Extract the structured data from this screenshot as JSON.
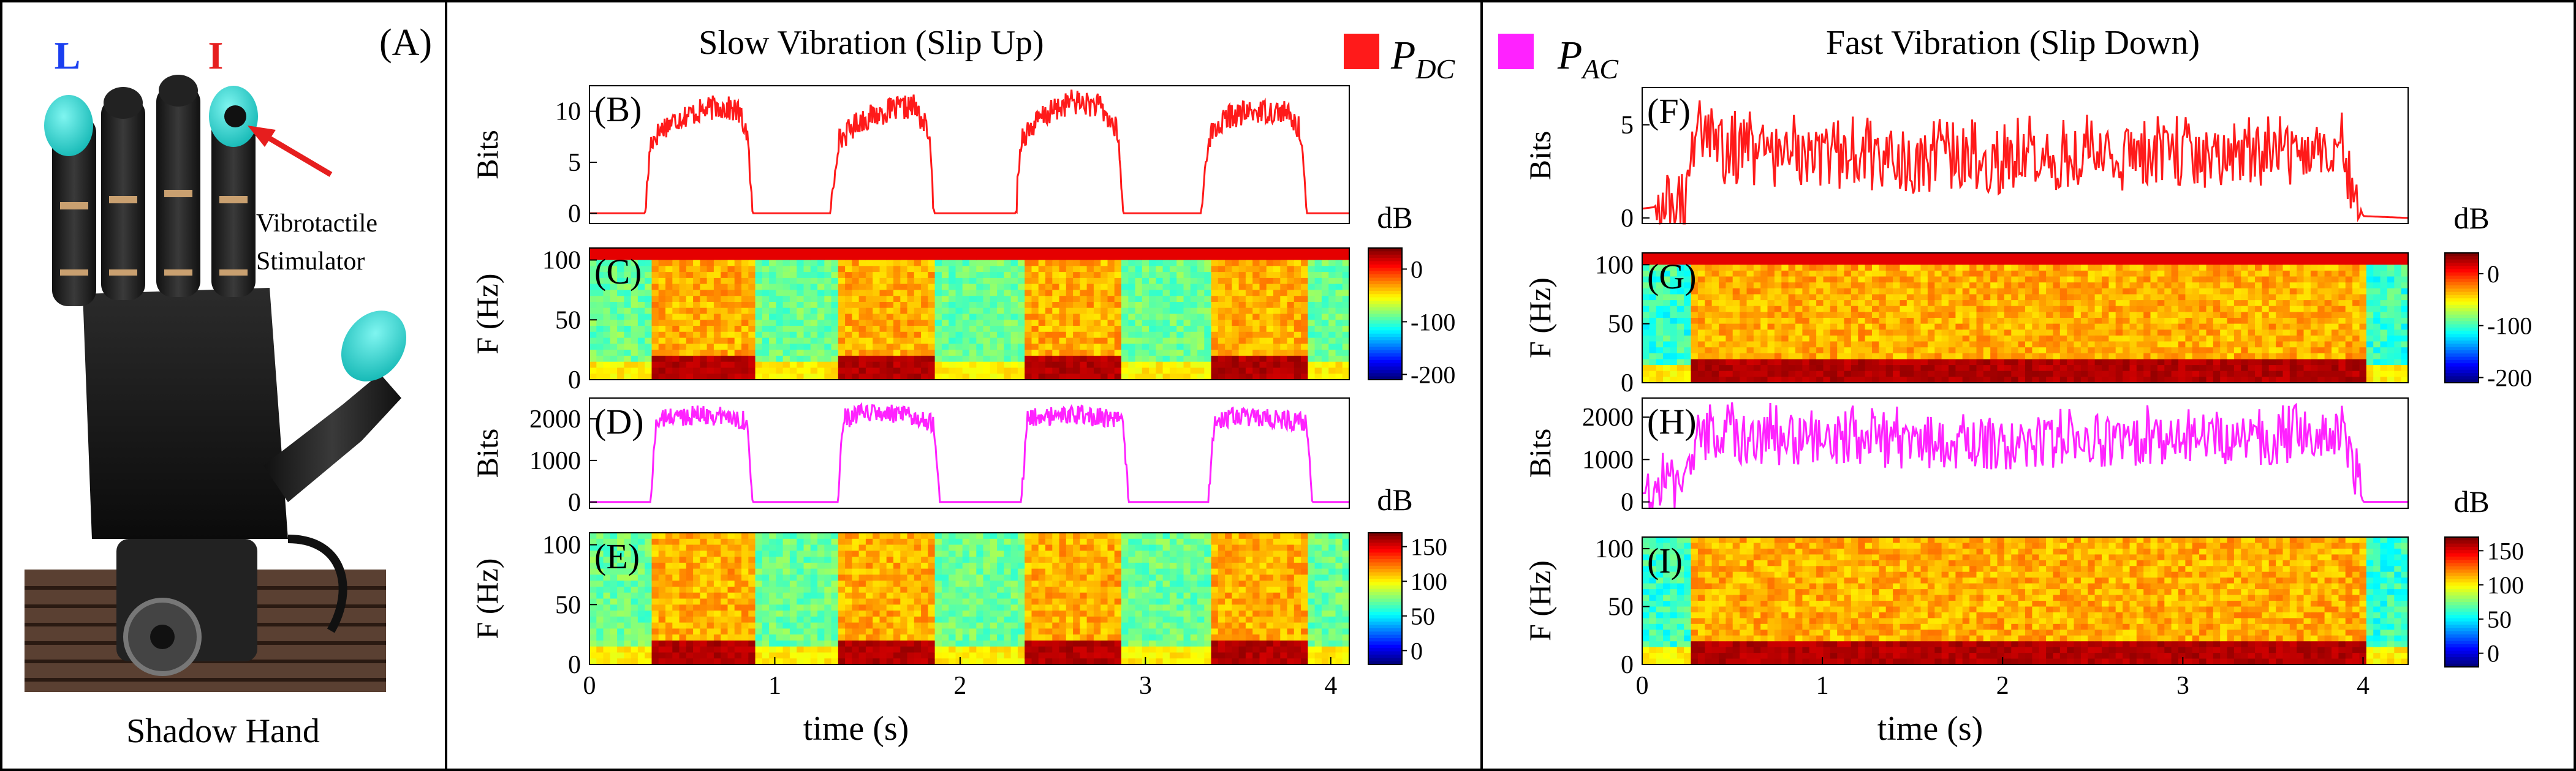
{
  "figure": {
    "panel_a": {
      "letter": "(A)",
      "caption": "Shadow Hand",
      "finger_l": "L",
      "finger_i": "I",
      "annotation": [
        "Vibrotactile",
        "Stimulator"
      ]
    },
    "left_title": "Slow Vibration  (Slip Up)",
    "right_title": "Fast Vibration  (Slip Down)",
    "legend": [
      {
        "label": "P",
        "sub": "DC",
        "color": "#ff1a1a"
      },
      {
        "label": "P",
        "sub": "AC",
        "color": "#ff22ff"
      }
    ],
    "shared_xlabel": "time  (s)",
    "colorbar_unit": "dB"
  },
  "chart_data": [
    {
      "id": "B",
      "letter": "(B)",
      "type": "line",
      "ylabel": "Bits",
      "color": "#ff1a1a",
      "xlim": [
        0,
        4.1
      ],
      "ylim": [
        -1,
        12.5
      ],
      "yticks": [
        0,
        5,
        10
      ],
      "series_name": "P_DC",
      "pattern": "slow",
      "x": [
        0,
        0.3,
        0.33,
        0.4,
        0.5,
        0.6,
        0.7,
        0.8,
        0.85,
        0.88,
        1.3,
        1.34,
        1.45,
        1.6,
        1.75,
        1.83,
        1.86,
        2.3,
        2.33,
        2.45,
        2.6,
        2.75,
        2.85,
        2.88,
        3.3,
        3.34,
        3.45,
        3.6,
        3.75,
        3.84,
        3.87,
        4.1
      ],
      "y": [
        0,
        0,
        7,
        8.5,
        9.5,
        10,
        10.5,
        10,
        8,
        0,
        0,
        7,
        9,
        10,
        10.5,
        8,
        0,
        0,
        7.5,
        9.5,
        11,
        10.5,
        8,
        0,
        0,
        7.5,
        9.5,
        10,
        10,
        8,
        0,
        0
      ]
    },
    {
      "id": "C",
      "letter": "(C)",
      "type": "heatmap",
      "ylabel": "F (Hz)",
      "xlim": [
        0,
        4.1
      ],
      "ylim": [
        0,
        110
      ],
      "yticks": [
        0,
        50,
        100
      ],
      "pattern": "slow",
      "on_intervals": [
        [
          0.33,
          0.88
        ],
        [
          1.34,
          1.86
        ],
        [
          2.33,
          2.88
        ],
        [
          3.34,
          3.87
        ]
      ],
      "colorbar_ticks": [
        0,
        -100,
        -200
      ],
      "colorbar_range": [
        -210,
        40
      ]
    },
    {
      "id": "D",
      "letter": "(D)",
      "type": "line",
      "ylabel": "Bits",
      "color": "#ff22ff",
      "xlim": [
        0,
        4.1
      ],
      "ylim": [
        -150,
        2500
      ],
      "yticks": [
        0,
        1000,
        2000
      ],
      "series_name": "P_AC",
      "pattern": "slow",
      "x": [
        0,
        0.33,
        0.36,
        0.45,
        0.6,
        0.75,
        0.85,
        0.88,
        1.34,
        1.37,
        1.5,
        1.65,
        1.8,
        1.86,
        1.89,
        2.33,
        2.36,
        2.5,
        2.65,
        2.8,
        2.88,
        2.91,
        3.34,
        3.37,
        3.5,
        3.65,
        3.8,
        3.87,
        3.9,
        4.1
      ],
      "y": [
        0,
        0,
        1950,
        2050,
        2100,
        2050,
        1950,
        0,
        0,
        2000,
        2150,
        2100,
        2000,
        1900,
        0,
        0,
        2000,
        2050,
        2100,
        2000,
        1900,
        0,
        0,
        1950,
        2050,
        2000,
        1950,
        1900,
        0,
        0
      ]
    },
    {
      "id": "E",
      "letter": "(E)",
      "type": "heatmap",
      "ylabel": "F (Hz)",
      "xlim": [
        0,
        4.1
      ],
      "ylim": [
        0,
        110
      ],
      "yticks": [
        0,
        50,
        100
      ],
      "xticks": [
        0,
        1,
        2,
        3,
        4
      ],
      "pattern": "slow",
      "on_intervals": [
        [
          0.33,
          0.88
        ],
        [
          1.34,
          1.86
        ],
        [
          2.33,
          2.88
        ],
        [
          3.34,
          3.87
        ]
      ],
      "colorbar_ticks": [
        150,
        100,
        50,
        0
      ],
      "colorbar_range": [
        -20,
        170
      ]
    },
    {
      "id": "F",
      "letter": "(F)",
      "type": "line",
      "ylabel": "Bits",
      "color": "#ff1a1a",
      "xlim": [
        0,
        4.25
      ],
      "ylim": [
        -0.3,
        7
      ],
      "yticks": [
        0,
        5
      ],
      "series_name": "P_DC",
      "pattern": "fast",
      "x": [
        0,
        0.25,
        0.3,
        0.4,
        0.6,
        0.8,
        1.0,
        1.5,
        2.0,
        2.5,
        3.0,
        3.5,
        3.8,
        3.9,
        4.0,
        4.25
      ],
      "y": [
        0.5,
        0.8,
        5.5,
        3.5,
        3.2,
        3.3,
        3.0,
        2.8,
        2.9,
        3.0,
        3.1,
        3.3,
        3.5,
        3.0,
        0.1,
        0
      ]
    },
    {
      "id": "G",
      "letter": "(G)",
      "type": "heatmap",
      "ylabel": "F (Hz)",
      "xlim": [
        0,
        4.25
      ],
      "ylim": [
        0,
        110
      ],
      "yticks": [
        0,
        50,
        100
      ],
      "pattern": "fast",
      "on_intervals": [
        [
          0.28,
          4.0
        ]
      ],
      "colorbar_ticks": [
        0,
        -100,
        -200
      ],
      "colorbar_range": [
        -210,
        40
      ]
    },
    {
      "id": "H",
      "letter": "(H)",
      "type": "line",
      "ylabel": "Bits",
      "color": "#ff22ff",
      "xlim": [
        0,
        4.25
      ],
      "ylim": [
        -150,
        2450
      ],
      "yticks": [
        0,
        1000,
        2000
      ],
      "series_name": "P_AC",
      "pattern": "fast",
      "x": [
        0,
        0.25,
        0.3,
        0.4,
        0.7,
        1.0,
        1.5,
        2.0,
        2.5,
        3.0,
        3.5,
        3.8,
        3.9,
        4.0,
        4.25
      ],
      "y": [
        200,
        300,
        1600,
        1500,
        1450,
        1400,
        1350,
        1300,
        1350,
        1400,
        1450,
        1500,
        1400,
        0,
        0
      ]
    },
    {
      "id": "I",
      "letter": "(I)",
      "type": "heatmap",
      "ylabel": "F (Hz)",
      "xlim": [
        0,
        4.25
      ],
      "ylim": [
        0,
        110
      ],
      "yticks": [
        0,
        50,
        100
      ],
      "xticks": [
        0,
        1,
        2,
        3,
        4
      ],
      "pattern": "fast",
      "on_intervals": [
        [
          0.28,
          4.0
        ]
      ],
      "colorbar_ticks": [
        150,
        100,
        50,
        0
      ],
      "colorbar_range": [
        -20,
        170
      ]
    }
  ]
}
